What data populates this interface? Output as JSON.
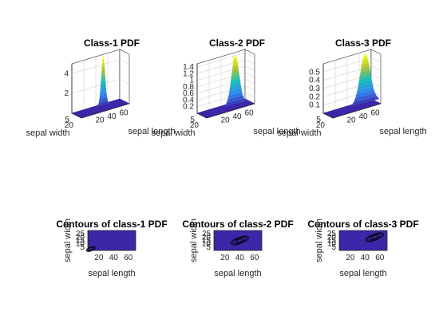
{
  "chart_data": [
    {
      "type": "surface",
      "title": "Class-1 PDF",
      "xlabel": "sepal length",
      "ylabel": "sepal width",
      "x_ticks": [
        20,
        40,
        60
      ],
      "y_ticks": [
        5,
        20
      ],
      "z_ticks": [
        2,
        4
      ],
      "zlim": [
        0,
        5
      ],
      "peak": {
        "x": 50,
        "y": 34,
        "z": 5.0
      },
      "colormap": [
        "#3e26a8",
        "#2e87f0",
        "#17bebb",
        "#abc32f",
        "#f9fb0e"
      ]
    },
    {
      "type": "surface",
      "title": "Class-2 PDF",
      "xlabel": "sepal length",
      "ylabel": "sepal width",
      "x_ticks": [
        20,
        40,
        60
      ],
      "y_ticks": [
        5,
        20
      ],
      "z_ticks": [
        0.2,
        0.4,
        0.6,
        0.8,
        1,
        1.2,
        1.4
      ],
      "zlim": [
        0,
        1.5
      ],
      "peak": {
        "x": 59,
        "y": 28,
        "z": 1.5
      },
      "colormap": [
        "#3e26a8",
        "#2e87f0",
        "#17bebb",
        "#abc32f",
        "#f9fb0e"
      ]
    },
    {
      "type": "surface",
      "title": "Class-3 PDF",
      "xlabel": "sepal length",
      "ylabel": "sepal width",
      "x_ticks": [
        20,
        40,
        60
      ],
      "y_ticks": [
        5,
        20
      ],
      "z_ticks": [
        0.1,
        0.2,
        0.3,
        0.4,
        0.5
      ],
      "zlim": [
        0,
        0.6
      ],
      "peak": {
        "x": 66,
        "y": 30,
        "z": 0.6
      },
      "colormap": [
        "#3e26a8",
        "#2e87f0",
        "#17bebb",
        "#abc32f",
        "#f9fb0e"
      ]
    },
    {
      "type": "contour",
      "title": "Contours of class-1 PDF",
      "xlabel": "sepal length",
      "ylabel": "sepal width",
      "x_ticks": [
        20,
        40,
        60
      ],
      "y_ticks": [
        5,
        10,
        15,
        20,
        25
      ],
      "xlim": [
        5,
        70
      ],
      "ylim": [
        0,
        30
      ],
      "center": {
        "x": 9,
        "y": 2
      },
      "background": "#3e26a8"
    },
    {
      "type": "contour",
      "title": "Contours of class-2 PDF",
      "xlabel": "sepal length",
      "ylabel": "sepal width",
      "x_ticks": [
        20,
        40,
        60
      ],
      "y_ticks": [
        5,
        10,
        15,
        20,
        25
      ],
      "xlim": [
        5,
        70
      ],
      "ylim": [
        0,
        30
      ],
      "center": {
        "x": 40,
        "y": 15
      },
      "background": "#3e26a8"
    },
    {
      "type": "contour",
      "title": "Contours of class-3 PDF",
      "xlabel": "sepal length",
      "ylabel": "sepal width",
      "x_ticks": [
        20,
        40,
        60
      ],
      "y_ticks": [
        5,
        10,
        15,
        20,
        25
      ],
      "xlim": [
        5,
        70
      ],
      "ylim": [
        0,
        30
      ],
      "center": {
        "x": 53,
        "y": 20
      },
      "background": "#3e26a8"
    }
  ]
}
